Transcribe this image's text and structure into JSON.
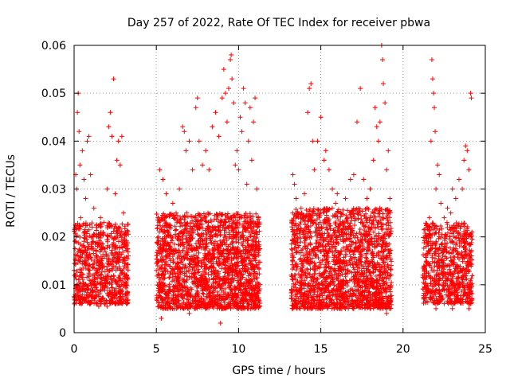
{
  "chart_data": {
    "type": "scatter",
    "title": "Day 257 of 2022, Rate Of TEC Index for receiver pbwa",
    "xlabel": "GPS time / hours",
    "ylabel": "ROTI / TECUs",
    "xlim": [
      0,
      25
    ],
    "ylim": [
      0,
      0.06
    ],
    "x_ticks": [
      0,
      5,
      10,
      15,
      20,
      25
    ],
    "y_ticks": [
      0,
      0.01,
      0.02,
      0.03,
      0.04,
      0.05,
      0.06
    ],
    "x_tick_labels": [
      "0",
      "5",
      "10",
      "15",
      "20",
      "25"
    ],
    "y_tick_labels": [
      "0",
      "0.01",
      "0.02",
      "0.03",
      "0.04",
      "0.05",
      "0.06"
    ],
    "grid": true,
    "marker": "+",
    "color": "#ff0000",
    "series": [
      {
        "points": [
          [
            0.0,
            0.013
          ],
          [
            0.1,
            0.033
          ],
          [
            0.15,
            0.03
          ],
          [
            0.2,
            0.046
          ],
          [
            0.25,
            0.05
          ],
          [
            0.3,
            0.042
          ],
          [
            0.35,
            0.035
          ],
          [
            0.4,
            0.024
          ],
          [
            0.5,
            0.038
          ],
          [
            0.6,
            0.032
          ],
          [
            0.7,
            0.028
          ],
          [
            0.8,
            0.04
          ],
          [
            0.9,
            0.041
          ],
          [
            1.0,
            0.033
          ],
          [
            1.1,
            0.022
          ],
          [
            1.2,
            0.026
          ],
          [
            1.4,
            0.02
          ],
          [
            1.6,
            0.024
          ],
          [
            1.8,
            0.023
          ],
          [
            2.0,
            0.03
          ],
          [
            2.1,
            0.043
          ],
          [
            2.2,
            0.046
          ],
          [
            2.3,
            0.041
          ],
          [
            2.4,
            0.053
          ],
          [
            2.5,
            0.029
          ],
          [
            2.6,
            0.036
          ],
          [
            2.7,
            0.04
          ],
          [
            2.8,
            0.035
          ],
          [
            2.9,
            0.041
          ],
          [
            3.0,
            0.025
          ],
          [
            3.1,
            0.018
          ],
          [
            0.5,
            0.007
          ],
          [
            1.0,
            0.006
          ],
          [
            1.5,
            0.0055
          ],
          [
            2.0,
            0.0055
          ],
          [
            2.5,
            0.006
          ],
          [
            3.0,
            0.0065
          ],
          [
            5.0,
            0.013
          ],
          [
            5.1,
            0.024
          ],
          [
            5.2,
            0.034
          ],
          [
            5.3,
            0.003
          ],
          [
            5.4,
            0.032
          ],
          [
            5.5,
            0.02
          ],
          [
            5.6,
            0.029
          ],
          [
            5.8,
            0.022
          ],
          [
            6.0,
            0.027
          ],
          [
            6.2,
            0.025
          ],
          [
            6.4,
            0.03
          ],
          [
            6.6,
            0.043
          ],
          [
            6.7,
            0.042
          ],
          [
            6.8,
            0.038
          ],
          [
            7.0,
            0.04
          ],
          [
            7.2,
            0.034
          ],
          [
            7.4,
            0.047
          ],
          [
            7.5,
            0.049
          ],
          [
            7.6,
            0.04
          ],
          [
            7.8,
            0.035
          ],
          [
            8.0,
            0.038
          ],
          [
            8.2,
            0.034
          ],
          [
            8.4,
            0.043
          ],
          [
            8.6,
            0.046
          ],
          [
            8.8,
            0.041
          ],
          [
            8.9,
            0.002
          ],
          [
            9.0,
            0.049
          ],
          [
            9.1,
            0.055
          ],
          [
            9.2,
            0.05
          ],
          [
            9.3,
            0.044
          ],
          [
            9.4,
            0.051
          ],
          [
            9.5,
            0.057
          ],
          [
            9.55,
            0.058
          ],
          [
            9.6,
            0.053
          ],
          [
            9.7,
            0.048
          ],
          [
            9.8,
            0.035
          ],
          [
            9.9,
            0.038
          ],
          [
            10.0,
            0.034
          ],
          [
            10.1,
            0.045
          ],
          [
            10.2,
            0.042
          ],
          [
            10.3,
            0.051
          ],
          [
            10.4,
            0.048
          ],
          [
            10.5,
            0.031
          ],
          [
            10.6,
            0.04
          ],
          [
            10.7,
            0.047
          ],
          [
            10.8,
            0.036
          ],
          [
            10.9,
            0.044
          ],
          [
            11.0,
            0.049
          ],
          [
            11.1,
            0.03
          ],
          [
            6.0,
            0.005
          ],
          [
            7.0,
            0.004
          ],
          [
            8.0,
            0.005
          ],
          [
            9.0,
            0.005
          ],
          [
            10.0,
            0.005
          ],
          [
            11.0,
            0.006
          ],
          [
            13.2,
            0.012
          ],
          [
            13.3,
            0.033
          ],
          [
            13.4,
            0.031
          ],
          [
            13.5,
            0.028
          ],
          [
            13.6,
            0.025
          ],
          [
            13.8,
            0.026
          ],
          [
            14.0,
            0.029
          ],
          [
            14.2,
            0.046
          ],
          [
            14.3,
            0.051
          ],
          [
            14.4,
            0.052
          ],
          [
            14.5,
            0.04
          ],
          [
            14.6,
            0.034
          ],
          [
            14.8,
            0.04
          ],
          [
            15.0,
            0.045
          ],
          [
            15.2,
            0.036
          ],
          [
            15.3,
            0.038
          ],
          [
            15.5,
            0.034
          ],
          [
            15.7,
            0.03
          ],
          [
            15.9,
            0.027
          ],
          [
            16.0,
            0.029
          ],
          [
            16.2,
            0.025
          ],
          [
            16.5,
            0.028
          ],
          [
            16.8,
            0.032
          ],
          [
            17.0,
            0.033
          ],
          [
            17.2,
            0.044
          ],
          [
            17.4,
            0.051
          ],
          [
            17.6,
            0.032
          ],
          [
            17.8,
            0.028
          ],
          [
            18.0,
            0.03
          ],
          [
            18.2,
            0.036
          ],
          [
            18.3,
            0.047
          ],
          [
            18.4,
            0.043
          ],
          [
            18.5,
            0.04
          ],
          [
            18.6,
            0.044
          ],
          [
            18.7,
            0.06
          ],
          [
            18.75,
            0.057
          ],
          [
            18.8,
            0.052
          ],
          [
            18.9,
            0.048
          ],
          [
            19.0,
            0.034
          ],
          [
            19.1,
            0.038
          ],
          [
            19.2,
            0.028
          ],
          [
            14.0,
            0.005
          ],
          [
            15.0,
            0.005
          ],
          [
            16.0,
            0.005
          ],
          [
            17.0,
            0.005
          ],
          [
            18.0,
            0.006
          ],
          [
            19.0,
            0.004
          ],
          [
            21.2,
            0.012
          ],
          [
            21.3,
            0.013
          ],
          [
            21.4,
            0.02
          ],
          [
            21.5,
            0.022
          ],
          [
            21.6,
            0.024
          ],
          [
            21.7,
            0.04
          ],
          [
            21.75,
            0.057
          ],
          [
            21.8,
            0.053
          ],
          [
            21.85,
            0.05
          ],
          [
            21.9,
            0.047
          ],
          [
            21.95,
            0.042
          ],
          [
            22.0,
            0.03
          ],
          [
            22.1,
            0.035
          ],
          [
            22.2,
            0.033
          ],
          [
            22.3,
            0.027
          ],
          [
            22.5,
            0.024
          ],
          [
            22.7,
            0.026
          ],
          [
            22.9,
            0.025
          ],
          [
            23.0,
            0.03
          ],
          [
            23.2,
            0.028
          ],
          [
            23.4,
            0.032
          ],
          [
            23.6,
            0.03
          ],
          [
            23.7,
            0.036
          ],
          [
            23.8,
            0.039
          ],
          [
            23.9,
            0.038
          ],
          [
            24.0,
            0.034
          ],
          [
            24.1,
            0.05
          ],
          [
            24.15,
            0.049
          ],
          [
            22.0,
            0.005
          ],
          [
            23.0,
            0.005
          ],
          [
            24.0,
            0.005
          ]
        ]
      }
    ],
    "bands": [
      {
        "x": [
          0.0,
          3.3
        ],
        "low": 0.006,
        "high": 0.023,
        "count": 750
      },
      {
        "x": [
          5.0,
          11.3
        ],
        "low": 0.005,
        "high": 0.025,
        "count": 1900
      },
      {
        "x": [
          13.2,
          19.3
        ],
        "low": 0.005,
        "high": 0.026,
        "count": 1800
      },
      {
        "x": [
          21.2,
          24.2
        ],
        "low": 0.006,
        "high": 0.023,
        "count": 700
      }
    ]
  }
}
